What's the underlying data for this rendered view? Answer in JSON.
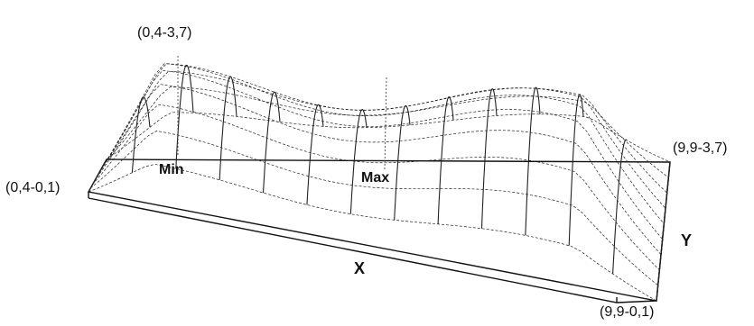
{
  "labels": {
    "corner_top_left": "(0,4-3,7)",
    "corner_bottom_left": "(0,4-0,1)",
    "corner_top_right": "(9,9-3,7)",
    "corner_bottom_right": "(9,9-0,1)",
    "min": "Min",
    "max": "Max",
    "x_axis": "X",
    "y_axis": "Y"
  },
  "colors": {
    "line": "#222222",
    "base_edge": "#111111",
    "background": "#ffffff"
  }
}
